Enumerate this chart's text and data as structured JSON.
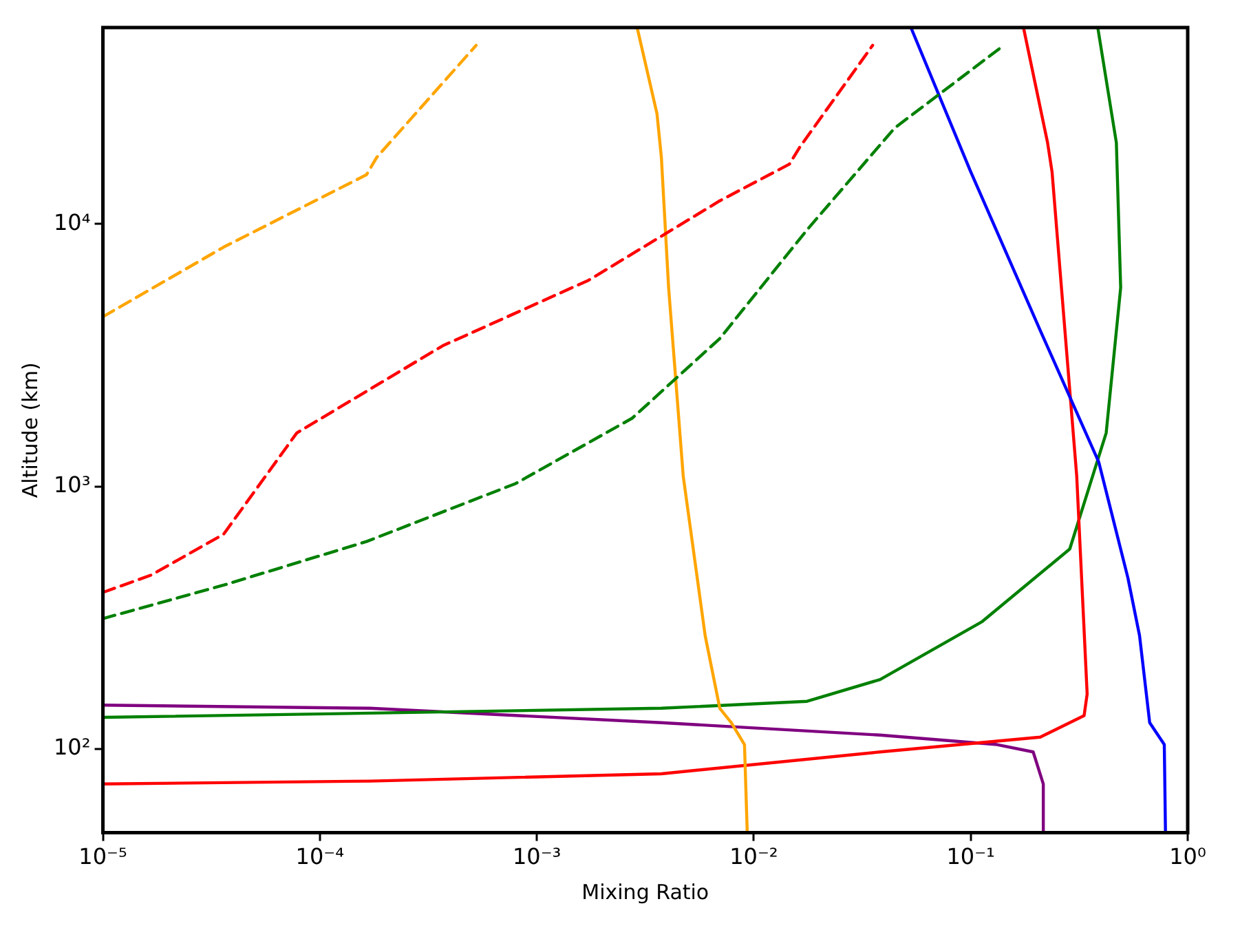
{
  "chart_data": {
    "type": "line",
    "xlabel": "Mixing Ratio",
    "ylabel": "Altitude (km)",
    "log": "xy",
    "grid": false,
    "marker": "none",
    "xlim": [
      1e-05,
      1
    ],
    "ylim": [
      48,
      56000
    ],
    "xticks": [
      {
        "value": 1e-05,
        "label": "10⁻⁵"
      },
      {
        "value": 0.0001,
        "label": "10⁻⁴"
      },
      {
        "value": 0.001,
        "label": "10⁻³"
      },
      {
        "value": 0.01,
        "label": "10⁻²"
      },
      {
        "value": 0.1,
        "label": "10⁻¹"
      },
      {
        "value": 1,
        "label": "10⁰"
      }
    ],
    "yticks": [
      {
        "value": 100,
        "label": "10²"
      },
      {
        "value": 1000,
        "label": "10³"
      },
      {
        "value": 10000,
        "label": "10⁴"
      }
    ],
    "series": [
      {
        "color": "#ffa500",
        "line_style": "dashed",
        "x": [
          1e-05,
          3.61e-05,
          0.000164,
          0.000183,
          0.000525
        ],
        "values": [
          4430,
          8170,
          15400,
          17950,
          47900
        ]
      },
      {
        "color": "#ff0000",
        "line_style": "dashed",
        "x": [
          1e-05,
          1.67e-05,
          3.6e-05,
          7.83e-05,
          0.000368,
          0.00173,
          0.00697,
          0.0146,
          0.0163,
          0.0353
        ],
        "values": [
          395,
          460,
          658,
          1600,
          3435,
          6100,
          12250,
          16900,
          19630,
          47900
        ]
      },
      {
        "color": "#008000",
        "line_style": "dashed",
        "x": [
          1e-05,
          3.6e-05,
          0.000164,
          0.000798,
          0.00275,
          0.00697,
          0.0176,
          0.0446,
          0.142
        ],
        "values": [
          314,
          421,
          617,
          1026,
          1820,
          3660,
          9500,
          23200,
          47900
        ]
      },
      {
        "color": "#ffa500",
        "line_style": "solid",
        "x": [
          0.0029,
          0.00358,
          0.00375,
          0.00405,
          0.00473,
          0.00597,
          0.00697,
          0.00788,
          0.00906,
          0.00933
        ],
        "values": [
          56000,
          26300,
          17950,
          5720,
          1094,
          270,
          143,
          126,
          104,
          48
        ]
      },
      {
        "color": "#0000ff",
        "line_style": "solid",
        "x": [
          0.053,
          0.1,
          0.21,
          0.389,
          0.53,
          0.6,
          0.668,
          0.78,
          0.79
        ],
        "values": [
          56000,
          15800,
          3900,
          1240,
          449,
          270,
          126,
          104,
          48
        ]
      },
      {
        "color": "#ff0000",
        "line_style": "solid",
        "x": [
          0.175,
          0.226,
          0.237,
          0.308,
          0.344,
          0.333,
          0.209,
          0.0382,
          0.00375,
          0.00017,
          1e-05
        ],
        "values": [
          56000,
          20400,
          15800,
          1094,
          162,
          134,
          111,
          97.5,
          80.5,
          75.5,
          73.6
        ]
      },
      {
        "color": "#008000",
        "line_style": "solid",
        "x": [
          0.385,
          0.469,
          0.491,
          0.421,
          0.286,
          0.113,
          0.0382,
          0.0176,
          0.00375,
          0.00017,
          1e-05
        ],
        "values": [
          56000,
          20400,
          5720,
          1600,
          578,
          306,
          184,
          152,
          143,
          137,
          132
        ]
      },
      {
        "color": "#800080",
        "line_style": "solid",
        "x": [
          1e-05,
          0.00017,
          0.00375,
          0.0382,
          0.132,
          0.194,
          0.216,
          0.216
        ],
        "values": [
          147,
          143,
          126,
          113,
          104,
          97.5,
          73.6,
          48
        ]
      }
    ]
  }
}
